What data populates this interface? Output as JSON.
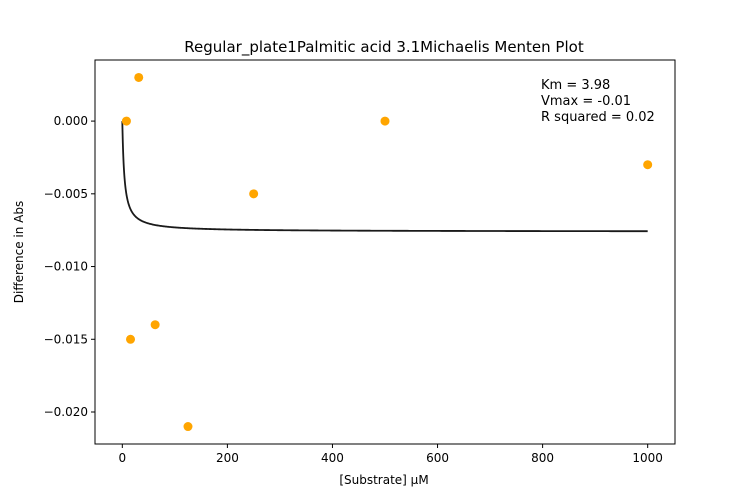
{
  "chart_data": {
    "type": "scatter",
    "title": "Regular_plate1Palmitic acid 3.1Michaelis Menten Plot",
    "xlabel": "[Substrate] µM",
    "ylabel": "Difference in Abs",
    "xlim": [
      -52,
      1052
    ],
    "ylim": [
      -0.0222,
      0.0042
    ],
    "xticks": [
      0,
      200,
      400,
      600,
      800,
      1000
    ],
    "xtick_labels": [
      "0",
      "200",
      "400",
      "600",
      "800",
      "1000"
    ],
    "yticks": [
      0.0,
      -0.005,
      -0.01,
      -0.015,
      -0.02
    ],
    "ytick_labels": [
      "0.000",
      "−0.005",
      "−0.010",
      "−0.015",
      "−0.020"
    ],
    "grid": false,
    "points": {
      "color": "#ffa500",
      "x": [
        7.8,
        15.6,
        31.25,
        62.5,
        125,
        250,
        500,
        1000
      ],
      "y": [
        0.0,
        -0.015,
        0.003,
        -0.014,
        -0.021,
        -0.005,
        0.0,
        -0.003
      ]
    },
    "fit_curve": {
      "color": "#1a1a1a",
      "model": "michaelis-menten",
      "km": 3.98,
      "vmax": -0.0076,
      "x_range": [
        0,
        1000
      ]
    },
    "annotation": [
      "Km = 3.98",
      "Vmax = -0.01",
      "R squared = 0.02"
    ]
  }
}
